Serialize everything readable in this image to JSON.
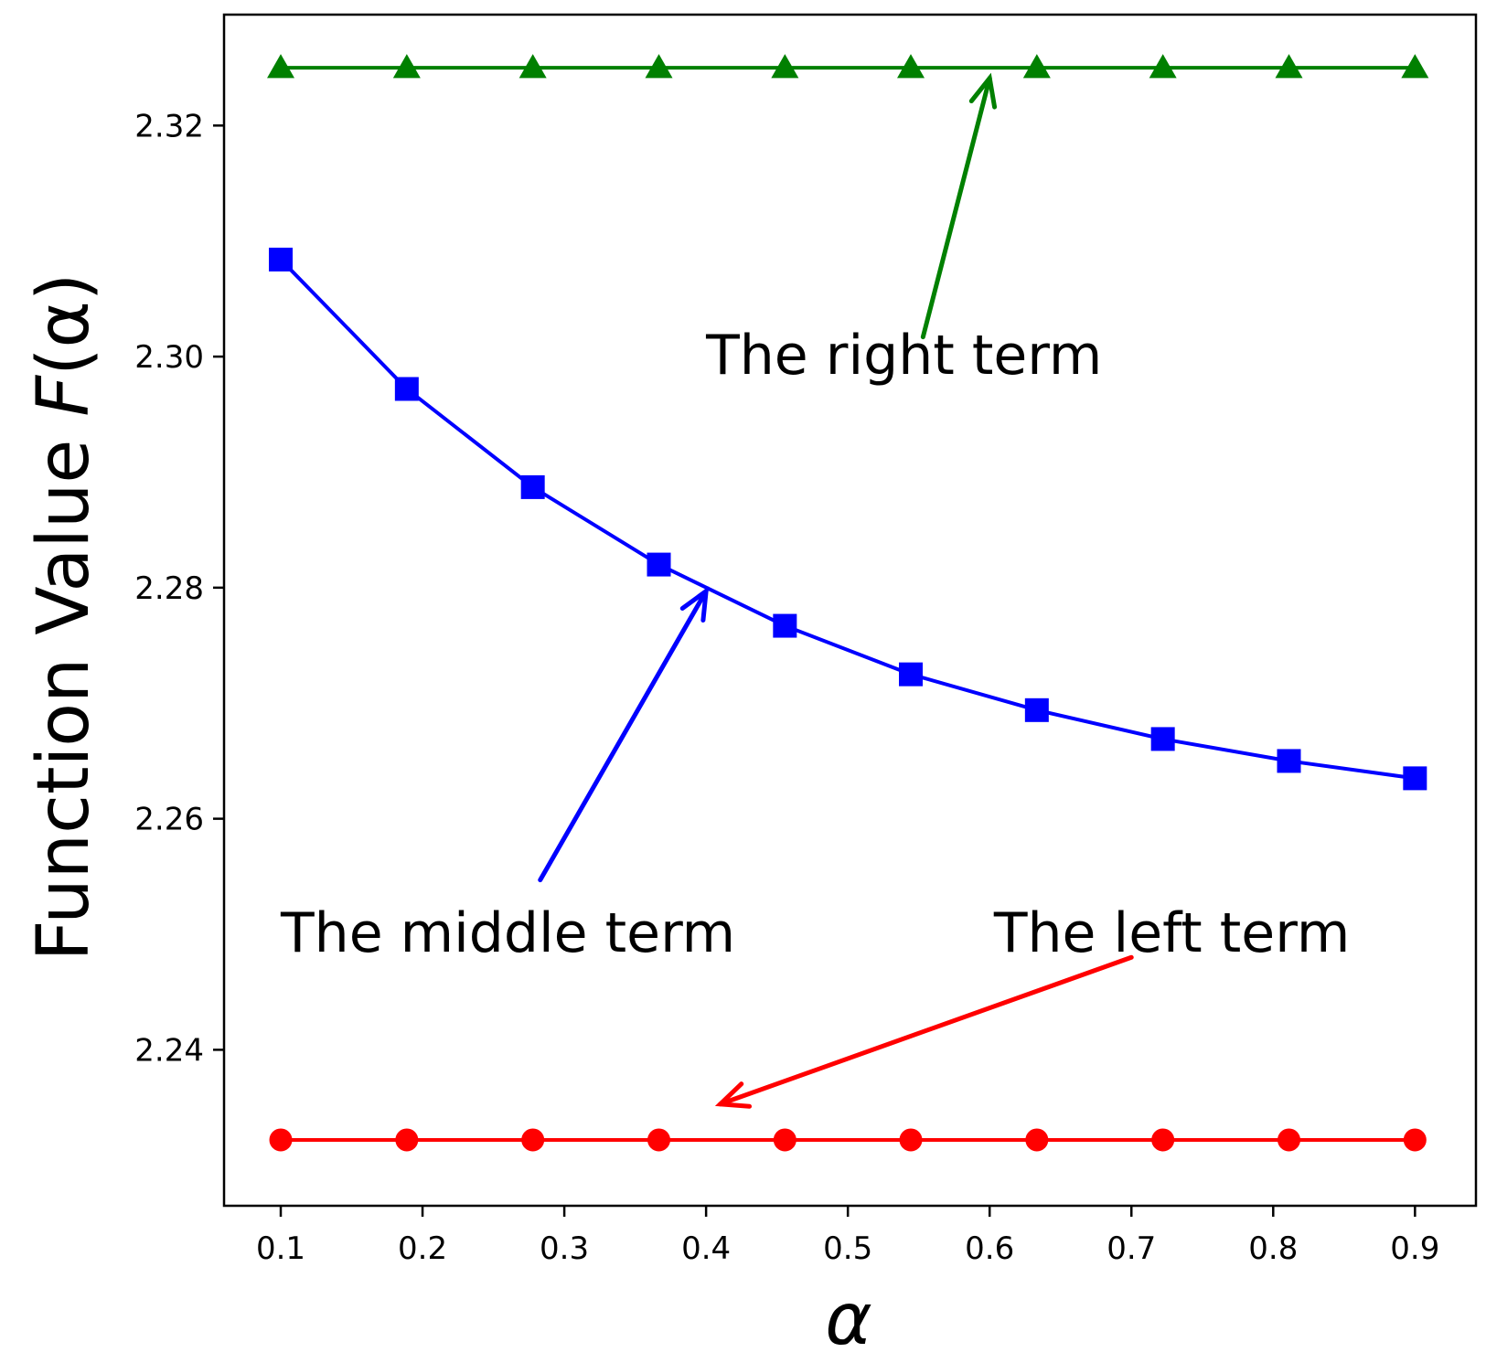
{
  "chart_data": {
    "type": "line",
    "title": "",
    "xlabel": "α",
    "ylabel_prefix": "Function Value ",
    "ylabel_func": "F",
    "ylabel_arg": "(α)",
    "x": [
      0.1,
      0.1889,
      0.2778,
      0.3667,
      0.4556,
      0.5444,
      0.6333,
      0.7222,
      0.8111,
      0.9
    ],
    "xlim": [
      0.06,
      0.943
    ],
    "ylim": [
      2.2265,
      2.3296
    ],
    "xticks": [
      0.1,
      0.2,
      0.3,
      0.4,
      0.5,
      0.6,
      0.7,
      0.8,
      0.9
    ],
    "xtick_labels": [
      "0.1",
      "0.2",
      "0.3",
      "0.4",
      "0.5",
      "0.6",
      "0.7",
      "0.8",
      "0.9"
    ],
    "yticks": [
      2.24,
      2.26,
      2.28,
      2.3,
      2.32
    ],
    "ytick_labels": [
      "2.24",
      "2.26",
      "2.28",
      "2.30",
      "2.32"
    ],
    "grid": false,
    "legend": "none",
    "series": [
      {
        "key": "right",
        "color": "#008000",
        "marker": "triangle",
        "values": [
          2.325,
          2.325,
          2.325,
          2.325,
          2.325,
          2.325,
          2.325,
          2.325,
          2.325,
          2.325
        ]
      },
      {
        "key": "middle",
        "color": "#0000ff",
        "marker": "square",
        "values": [
          2.3084,
          2.2972,
          2.2887,
          2.282,
          2.2767,
          2.2725,
          2.2694,
          2.2669,
          2.265,
          2.2635
        ]
      },
      {
        "key": "left",
        "color": "#ff0000",
        "marker": "circle",
        "values": [
          2.2322,
          2.2322,
          2.2322,
          2.2322,
          2.2322,
          2.2322,
          2.2322,
          2.2322,
          2.2322,
          2.2322
        ]
      }
    ],
    "annotations": [
      {
        "key": "right",
        "text": "The right term",
        "color": "#008000",
        "text_xy": [
          0.4,
          2.2985
        ],
        "tail_xy": [
          0.553,
          2.3017
        ],
        "tip_xy": [
          0.6,
          2.3241
        ]
      },
      {
        "key": "middle",
        "text": "The middle term",
        "color": "#0000ff",
        "text_xy": [
          0.1,
          2.2485
        ],
        "tail_xy": [
          0.283,
          2.2547
        ],
        "tip_xy": [
          0.4,
          2.2797
        ]
      },
      {
        "key": "left",
        "text": "The left term",
        "color": "#ff0000",
        "text_xy": [
          0.603,
          2.2485
        ],
        "tail_xy": [
          0.7,
          2.248
        ],
        "tip_xy": [
          0.41,
          2.2353
        ]
      }
    ]
  }
}
